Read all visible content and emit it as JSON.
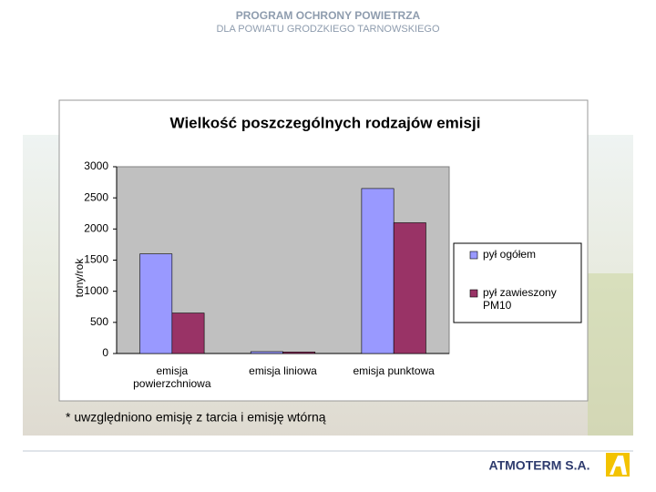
{
  "header": {
    "title": "PROGRAM OCHRONY POWIETRZA",
    "subtitle": "DLA POWIATU GRODZKIEGO TARNOWSKIEGO"
  },
  "chart_data": {
    "type": "bar",
    "title": "Wielkość poszczególnych rodzajów emisji",
    "y_label": "tony/rok",
    "categories": [
      "emisja powierzchniowa",
      "emisja liniowa",
      "emisja punktowa"
    ],
    "series": [
      {
        "name": "pył ogółem",
        "color": "#9999ff",
        "values": [
          1600,
          30,
          2650
        ]
      },
      {
        "name": "pył zawieszony PM10",
        "color": "#993366",
        "values": [
          650,
          25,
          2100
        ]
      }
    ],
    "ylim": [
      0,
      3000
    ],
    "yticks": [
      0,
      500,
      1000,
      1500,
      2000,
      2500,
      3000
    ],
    "grid": false,
    "legend": "right"
  },
  "footnote": "* uwzględniono emisję z tarcia i emisję wtórną",
  "footer": {
    "company": "ATMOTERM S.A."
  }
}
